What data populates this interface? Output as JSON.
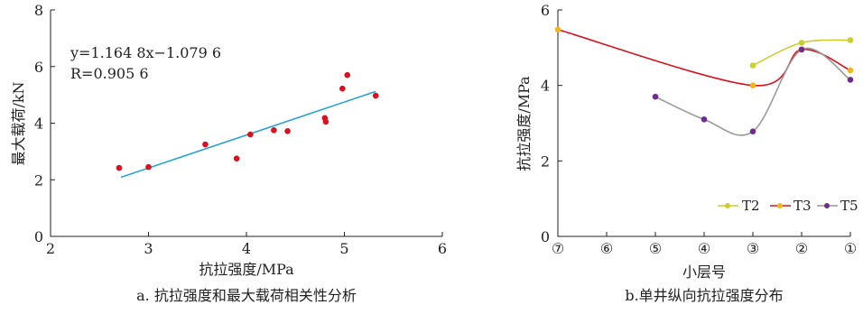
{
  "colors": {
    "scatter_point": "#d9121f",
    "fit_line": "#1aa0d8",
    "T2": "#c8cf2e",
    "T3": "#d9121f",
    "T5": "#6c2d8f",
    "T5_line": "#9a9a9a",
    "T2_point": "#c8cf2e",
    "T3_point": "#f2b51c"
  },
  "chart_data": [
    {
      "type": "scatter",
      "caption": "a. 抗拉强度和最大载荷相关性分析",
      "xlabel": "抗拉强度/MPa",
      "ylabel": "最大载荷/kN",
      "xlim": [
        2,
        6
      ],
      "ylim": [
        0,
        8
      ],
      "xticks": [
        2,
        3,
        4,
        5,
        6
      ],
      "yticks": [
        0,
        2,
        4,
        6,
        8
      ],
      "equation": "y=1.164 8x−1.079 6",
      "correlation": "R=0.905 6",
      "fit_line": {
        "x": [
          2.72,
          5.32
        ],
        "y": [
          2.09,
          5.12
        ]
      },
      "points": [
        [
          2.7,
          2.42
        ],
        [
          3.0,
          2.45
        ],
        [
          3.58,
          3.25
        ],
        [
          3.9,
          2.75
        ],
        [
          4.04,
          3.6
        ],
        [
          4.28,
          3.75
        ],
        [
          4.42,
          3.72
        ],
        [
          4.8,
          4.18
        ],
        [
          4.81,
          4.05
        ],
        [
          4.98,
          5.22
        ],
        [
          5.03,
          5.7
        ],
        [
          5.32,
          4.97
        ]
      ]
    },
    {
      "type": "line",
      "caption": "b.单井纵向抗拉强度分布",
      "xlabel": "小层号",
      "ylabel": "抗拉强度/MPa",
      "categories": [
        "⑦",
        "⑥",
        "⑤",
        "④",
        "③",
        "②",
        "①"
      ],
      "ylim": [
        0,
        6
      ],
      "yticks": [
        0,
        2,
        4,
        6
      ],
      "legend": [
        "T2",
        "T3",
        "T5"
      ],
      "series": [
        {
          "name": "T2",
          "x": [
            4,
            5,
            6
          ],
          "y": [
            4.53,
            5.13,
            5.2
          ]
        },
        {
          "name": "T3",
          "x": [
            0,
            4,
            5,
            6
          ],
          "y": [
            5.48,
            4.0,
            4.95,
            4.4
          ]
        },
        {
          "name": "T5",
          "x": [
            2,
            3,
            4,
            5,
            6
          ],
          "y": [
            3.7,
            3.1,
            2.78,
            4.95,
            4.15
          ]
        }
      ]
    }
  ]
}
